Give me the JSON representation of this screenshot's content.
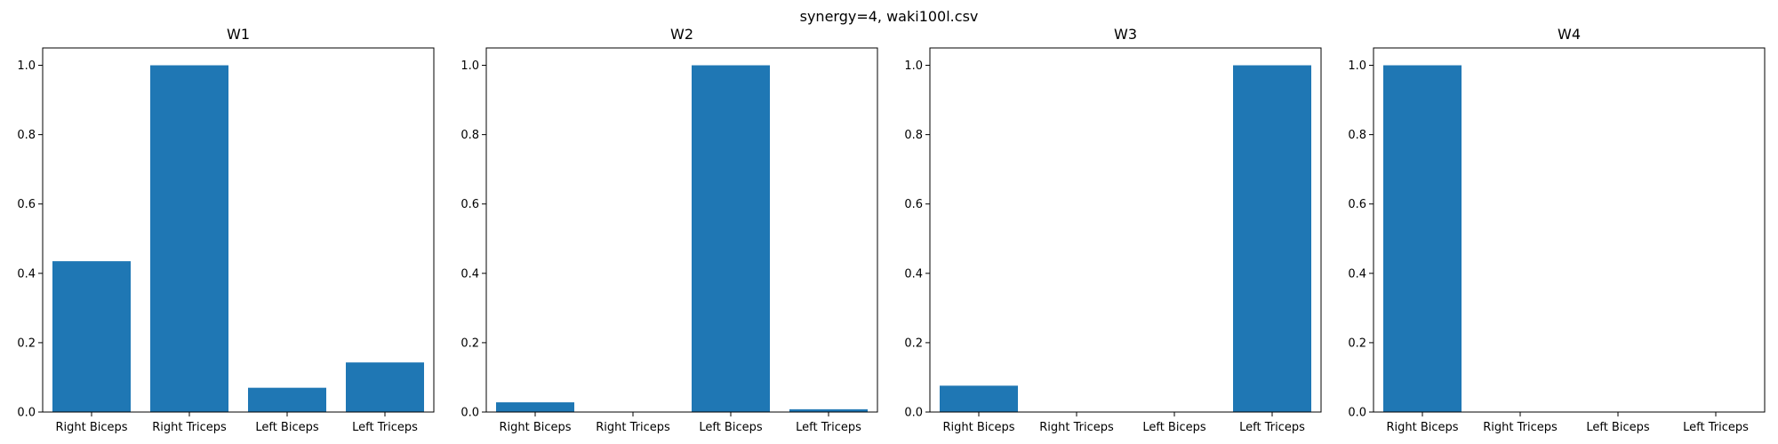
{
  "figure": {
    "suptitle": "synergy=4, waki100l.csv",
    "bar_color": "#1f77b4"
  },
  "chart_data": [
    {
      "type": "bar",
      "title": "W1",
      "categories": [
        "Right Biceps",
        "Right Triceps",
        "Left Biceps",
        "Left Triceps"
      ],
      "values": [
        0.435,
        1.0,
        0.07,
        0.143
      ],
      "xlabel": "",
      "ylabel": "",
      "ylim": [
        0,
        1.05
      ],
      "yticks": [
        "0.0",
        "0.2",
        "0.4",
        "0.6",
        "0.8",
        "1.0"
      ],
      "grid": false
    },
    {
      "type": "bar",
      "title": "W2",
      "categories": [
        "Right Biceps",
        "Right Triceps",
        "Left Biceps",
        "Left Triceps"
      ],
      "values": [
        0.028,
        0.0,
        1.0,
        0.008
      ],
      "xlabel": "",
      "ylabel": "",
      "ylim": [
        0,
        1.05
      ],
      "yticks": [
        "0.0",
        "0.2",
        "0.4",
        "0.6",
        "0.8",
        "1.0"
      ],
      "grid": false
    },
    {
      "type": "bar",
      "title": "W3",
      "categories": [
        "Right Biceps",
        "Right Triceps",
        "Left Biceps",
        "Left Triceps"
      ],
      "values": [
        0.076,
        0.0,
        0.0,
        1.0
      ],
      "xlabel": "",
      "ylabel": "",
      "ylim": [
        0,
        1.05
      ],
      "yticks": [
        "0.0",
        "0.2",
        "0.4",
        "0.6",
        "0.8",
        "1.0"
      ],
      "grid": false
    },
    {
      "type": "bar",
      "title": "W4",
      "categories": [
        "Right Biceps",
        "Right Triceps",
        "Left Biceps",
        "Left Triceps"
      ],
      "values": [
        1.0,
        0.0,
        0.0,
        0.0
      ],
      "xlabel": "",
      "ylabel": "",
      "ylim": [
        0,
        1.05
      ],
      "yticks": [
        "0.0",
        "0.2",
        "0.4",
        "0.6",
        "0.8",
        "1.0"
      ],
      "grid": false
    }
  ]
}
